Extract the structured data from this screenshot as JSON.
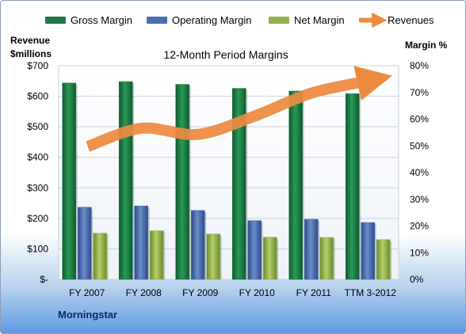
{
  "chart_data": {
    "type": "bar",
    "title": "12-Month Period Margins",
    "categories": [
      "FY 2007",
      "FY 2008",
      "FY 2009",
      "FY 2010",
      "FY 2011",
      "TTM 3-2012"
    ],
    "y_left": {
      "label_line1": "Revenue",
      "label_line2": "$millions",
      "ylim": [
        0,
        700
      ],
      "ticks": [
        {
          "value": 0,
          "label": "$-"
        },
        {
          "value": 100,
          "label": "$100"
        },
        {
          "value": 200,
          "label": "$200"
        },
        {
          "value": 300,
          "label": "$300"
        },
        {
          "value": 400,
          "label": "$400"
        },
        {
          "value": 500,
          "label": "$500"
        },
        {
          "value": 600,
          "label": "$600"
        },
        {
          "value": 700,
          "label": "$700"
        }
      ]
    },
    "y_right": {
      "label": "Margin %",
      "ylim": [
        0,
        80
      ],
      "ticks": [
        {
          "value": 0,
          "label": "0%"
        },
        {
          "value": 10,
          "label": "10%"
        },
        {
          "value": 20,
          "label": "20%"
        },
        {
          "value": 30,
          "label": "30%"
        },
        {
          "value": 40,
          "label": "40%"
        },
        {
          "value": 50,
          "label": "50%"
        },
        {
          "value": 60,
          "label": "60%"
        },
        {
          "value": 70,
          "label": "70%"
        },
        {
          "value": 80,
          "label": "80%"
        }
      ]
    },
    "series": [
      {
        "name": "Gross Margin",
        "kind": "bar",
        "axis": "right",
        "color": "#1e7a45",
        "values": [
          73.5,
          74.0,
          73.0,
          71.5,
          70.5,
          69.5
        ]
      },
      {
        "name": "Operating Margin",
        "kind": "bar",
        "axis": "right",
        "color": "#4a6fb0",
        "values": [
          27.0,
          27.5,
          25.8,
          22.0,
          22.5,
          21.3
        ]
      },
      {
        "name": "Net Margin",
        "kind": "bar",
        "axis": "right",
        "color": "#93b24a",
        "values": [
          17.3,
          18.2,
          17.0,
          15.8,
          15.7,
          14.9
        ]
      },
      {
        "name": "Revenues",
        "kind": "line",
        "axis": "left",
        "color": "#ed8a3f",
        "values": [
          435,
          495,
          475,
          535,
          610,
          650
        ]
      }
    ],
    "grid": true,
    "legend": "top"
  },
  "source": "Morningstar"
}
